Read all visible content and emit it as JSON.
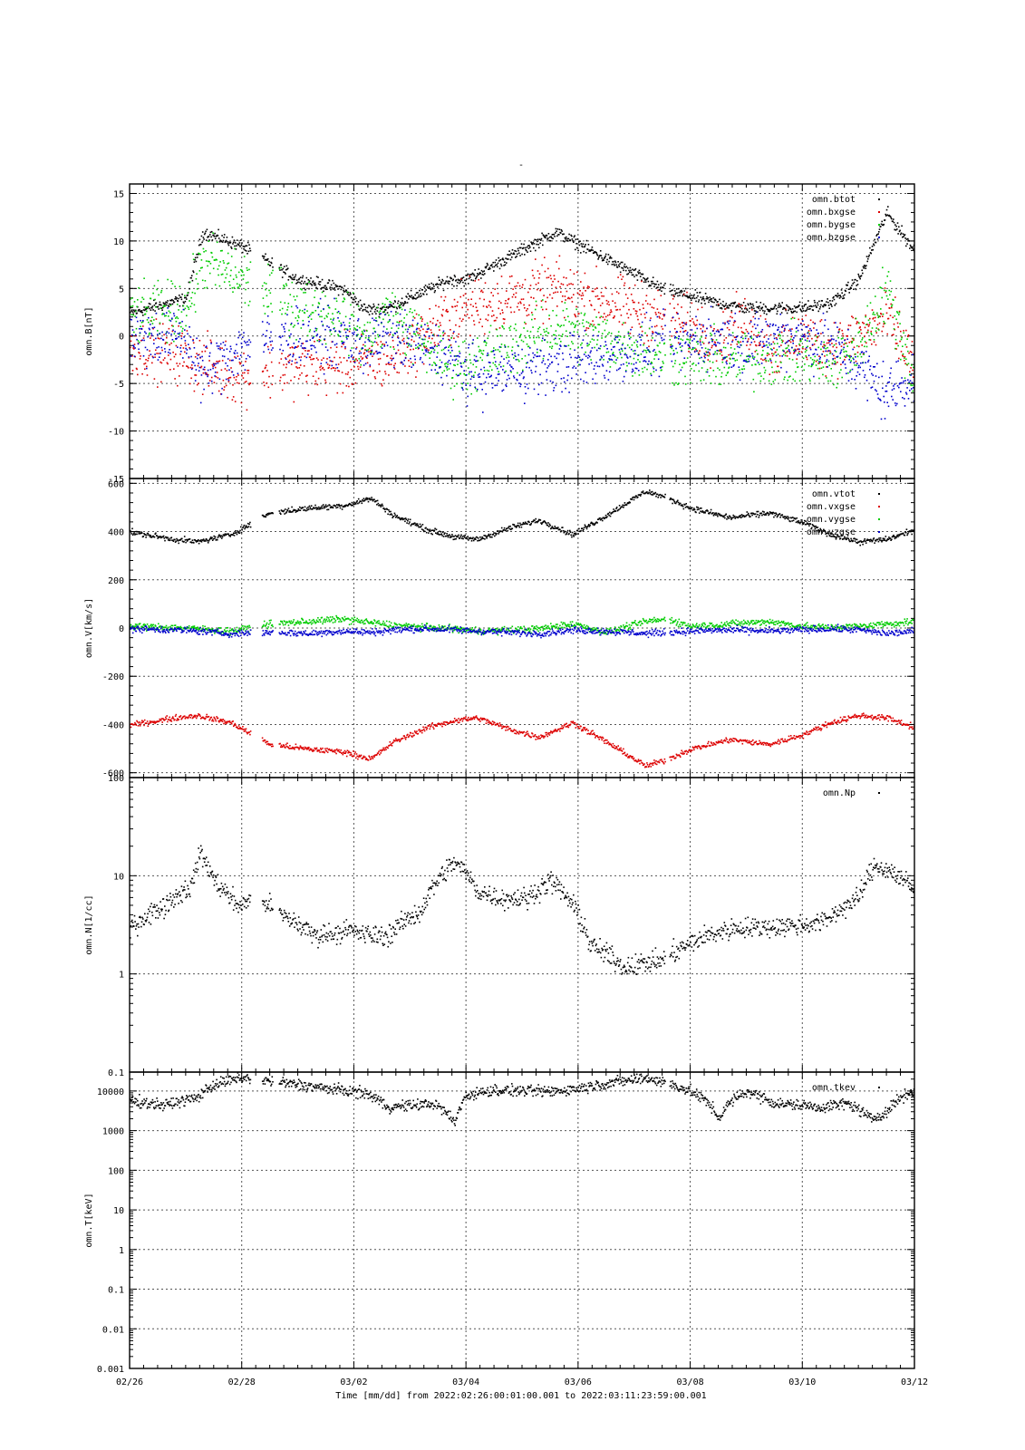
{
  "figure": {
    "title": "-",
    "xlabel": "Time [mm/dd]  from 2022:02:26:00:01:00.001  to  2022:03:11:23:59:00.001",
    "x_tick_labels": [
      "02/26",
      "02/28",
      "03/02",
      "03/04",
      "03/06",
      "03/08",
      "03/10",
      "03/12"
    ],
    "x_range_days": [
      0,
      14
    ]
  },
  "colors": {
    "black": "#000000",
    "red": "#dd0000",
    "green": "#00cc00",
    "blue": "#0000cc",
    "grid": "#555555"
  },
  "chart_data": [
    {
      "type": "scatter",
      "ylabel": "omn.B[nT]",
      "ylim": [
        -15,
        16
      ],
      "yscale": "linear",
      "ticks": [
        -15,
        -10,
        -5,
        0,
        5,
        10,
        15
      ],
      "tick_labels": [
        "-15",
        "-10",
        "-5",
        "0",
        "5",
        "10",
        "15"
      ],
      "grid": true,
      "legend": "top-right",
      "x": [
        0,
        1,
        1.3,
        2,
        3,
        3.8,
        4.2,
        4.6,
        5.7,
        6,
        7.6,
        9.5,
        10.5,
        11,
        11.5,
        12,
        12.5,
        13,
        13.5,
        14
      ],
      "series": [
        {
          "name": "omn.btot",
          "color": "#000000",
          "values": [
            2.5,
            4,
            11,
            9.5,
            6,
            5,
            2.8,
            3,
            6,
            6,
            11,
            5,
            3.5,
            3,
            3,
            3,
            3.5,
            6,
            13,
            9
          ]
        },
        {
          "name": "omn.bxgse",
          "color": "#dd0000",
          "values": [
            -1,
            -2,
            -3,
            -4,
            -3,
            -3,
            -2.5,
            -2.5,
            2,
            3,
            5,
            2,
            0,
            1.5,
            -1.5,
            0,
            -1,
            0,
            2,
            -3
          ]
        },
        {
          "name": "omn.bygse",
          "color": "#00cc00",
          "values": [
            2,
            3,
            8,
            6,
            3,
            2,
            -0.5,
            2.5,
            -3,
            -3,
            1,
            -2,
            -2.5,
            -2.5,
            -2,
            -2,
            -3,
            -1,
            5,
            -5
          ]
        },
        {
          "name": "omn.bzgse",
          "color": "#0000cc",
          "values": [
            0,
            0,
            -4,
            -1,
            0,
            0,
            -1,
            0,
            -2,
            -4,
            -3,
            -1,
            0,
            -1,
            0,
            0,
            -1,
            -3,
            -6,
            -4
          ]
        }
      ]
    },
    {
      "type": "scatter",
      "ylabel": "omn.V[km/s]",
      "ylim": [
        -620,
        620
      ],
      "yscale": "linear",
      "ticks": [
        -600,
        -400,
        -200,
        0,
        200,
        400,
        600
      ],
      "tick_labels": [
        "-600",
        "-400",
        "-200",
        "0",
        "200",
        "400",
        "600"
      ],
      "grid": true,
      "legend": "top-right",
      "x": [
        0,
        0.8,
        1.2,
        1.8,
        2.5,
        3.2,
        3.8,
        4.3,
        4.7,
        5.3,
        5.8,
        6.2,
        6.8,
        7.3,
        7.9,
        8.5,
        9.2,
        9.6,
        10,
        10.7,
        11.4,
        12,
        12.5,
        13,
        13.5,
        14
      ],
      "series": [
        {
          "name": "omn.vtot",
          "color": "#000000",
          "values": [
            400,
            370,
            360,
            390,
            480,
            500,
            510,
            540,
            470,
            410,
            380,
            370,
            420,
            450,
            390,
            470,
            570,
            540,
            500,
            460,
            480,
            440,
            390,
            360,
            370,
            410
          ]
        },
        {
          "name": "omn.vxgse",
          "color": "#dd0000",
          "values": [
            -400,
            -370,
            -360,
            -390,
            -480,
            -500,
            -510,
            -540,
            -470,
            -410,
            -380,
            -370,
            -420,
            -450,
            -390,
            -470,
            -570,
            -540,
            -500,
            -460,
            -480,
            -440,
            -390,
            -360,
            -370,
            -410
          ]
        },
        {
          "name": "omn.vygse",
          "color": "#00cc00",
          "values": [
            10,
            5,
            0,
            -10,
            20,
            30,
            40,
            25,
            15,
            5,
            0,
            -10,
            -5,
            0,
            20,
            -15,
            30,
            40,
            10,
            20,
            30,
            10,
            5,
            10,
            20,
            30
          ]
        },
        {
          "name": "omn.vzgse",
          "color": "#0000cc",
          "values": [
            0,
            -5,
            -10,
            -20,
            -15,
            -20,
            -10,
            -15,
            -5,
            0,
            -5,
            -10,
            -15,
            -20,
            -5,
            -10,
            -20,
            -15,
            -10,
            -5,
            -10,
            -5,
            0,
            -5,
            -20,
            -10
          ]
        }
      ]
    },
    {
      "type": "scatter",
      "ylabel": "omn.N[1/cc]",
      "ylim": [
        0.1,
        100
      ],
      "yscale": "log",
      "ticks": [
        0.1,
        1,
        10,
        100
      ],
      "tick_labels": [
        "0.1",
        "1",
        "10",
        "100"
      ],
      "grid": true,
      "legend": "top-right",
      "x": [
        0,
        0.6,
        1.1,
        1.25,
        1.5,
        1.9,
        2.3,
        2.7,
        3.3,
        3.9,
        4.3,
        4.6,
        5.2,
        5.6,
        5.8,
        6.2,
        6.6,
        7.1,
        7.5,
        8.2,
        8.8,
        9.5,
        10.3,
        10.8,
        11.2,
        12,
        12.4,
        13,
        13.3,
        13.6,
        14
      ],
      "series": [
        {
          "name": "omn.Np",
          "color": "#000000",
          "values": [
            3,
            5,
            8,
            17,
            9,
            5,
            6,
            4,
            2.5,
            2.8,
            2.5,
            2.5,
            4.5,
            11,
            14,
            7,
            6,
            6,
            9,
            2,
            1.2,
            1.4,
            2.5,
            3,
            3,
            3.2,
            3.5,
            6,
            13,
            11,
            7
          ]
        }
      ]
    },
    {
      "type": "scatter",
      "ylabel": "omn.T[keV]",
      "ylim": [
        0.001,
        30000
      ],
      "yscale": "log",
      "ticks": [
        0.001,
        0.01,
        0.1,
        1,
        10,
        100,
        1000,
        10000
      ],
      "tick_labels": [
        "0.001",
        "0.01",
        "0.1",
        "1",
        "10",
        "100",
        "1000",
        "10000"
      ],
      "grid": true,
      "legend": "top-right",
      "x": [
        0,
        0.6,
        1.2,
        1.5,
        2,
        2.5,
        3,
        3.5,
        4.2,
        4.6,
        5,
        5.4,
        5.8,
        6,
        6.5,
        7.5,
        8,
        9.2,
        10,
        10.5,
        11,
        11.5,
        12,
        12.3,
        12.8,
        13.2,
        13.5,
        13.8,
        14
      ],
      "series": [
        {
          "name": "omn.tkev",
          "color": "#000000",
          "values": [
            6000,
            4500,
            7000,
            15000,
            22000,
            18000,
            15000,
            12000,
            9000,
            4000,
            4500,
            5000,
            1500,
            8000,
            11000,
            10000,
            12000,
            22000,
            10000,
            2000,
            10000,
            5000,
            4500,
            4000,
            5000,
            2000,
            3000,
            8000,
            10000
          ]
        }
      ]
    }
  ]
}
